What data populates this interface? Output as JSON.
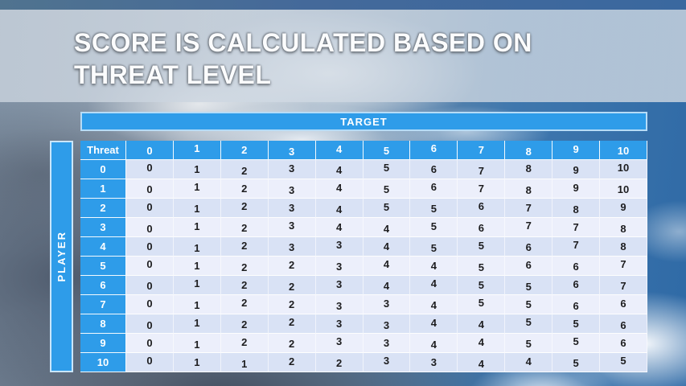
{
  "slide": {
    "title_line1": "SCORE IS CALCULATED BASED ON",
    "title_line2": "THREAT LEVEL"
  },
  "table": {
    "target_label": "TARGET",
    "player_label": "PLAYER",
    "corner_label": "Threat",
    "col_headers": [
      "0",
      "1",
      "2",
      "3",
      "4",
      "5",
      "6",
      "7",
      "8",
      "9",
      "10"
    ],
    "rows": [
      {
        "threat": "0",
        "values": [
          0,
          1,
          2,
          3,
          4,
          5,
          6,
          7,
          8,
          9,
          10
        ]
      },
      {
        "threat": "1",
        "values": [
          0,
          1,
          2,
          3,
          4,
          5,
          6,
          7,
          8,
          9,
          10
        ]
      },
      {
        "threat": "2",
        "values": [
          0,
          1,
          2,
          3,
          4,
          5,
          5,
          6,
          7,
          8,
          9
        ]
      },
      {
        "threat": "3",
        "values": [
          0,
          1,
          2,
          3,
          4,
          4,
          5,
          6,
          7,
          7,
          8
        ]
      },
      {
        "threat": "4",
        "values": [
          0,
          1,
          2,
          3,
          3,
          4,
          5,
          5,
          6,
          7,
          8
        ]
      },
      {
        "threat": "5",
        "values": [
          0,
          1,
          2,
          2,
          3,
          4,
          4,
          5,
          6,
          6,
          7
        ]
      },
      {
        "threat": "6",
        "values": [
          0,
          1,
          2,
          2,
          3,
          4,
          4,
          5,
          5,
          6,
          7
        ]
      },
      {
        "threat": "7",
        "values": [
          0,
          1,
          2,
          2,
          3,
          3,
          4,
          5,
          5,
          6,
          6
        ]
      },
      {
        "threat": "8",
        "values": [
          0,
          1,
          2,
          2,
          3,
          3,
          4,
          4,
          5,
          5,
          6
        ]
      },
      {
        "threat": "9",
        "values": [
          0,
          1,
          2,
          2,
          3,
          3,
          4,
          4,
          5,
          5,
          6
        ]
      },
      {
        "threat": "10",
        "values": [
          0,
          1,
          1,
          2,
          2,
          3,
          3,
          4,
          4,
          5,
          5
        ]
      }
    ]
  },
  "colors": {
    "accent": "#2e9ce9",
    "row_even": "#d9e2f5",
    "row_odd": "#eceffb",
    "cell_text": "#1d1d1f",
    "header_text": "#ffffff"
  }
}
